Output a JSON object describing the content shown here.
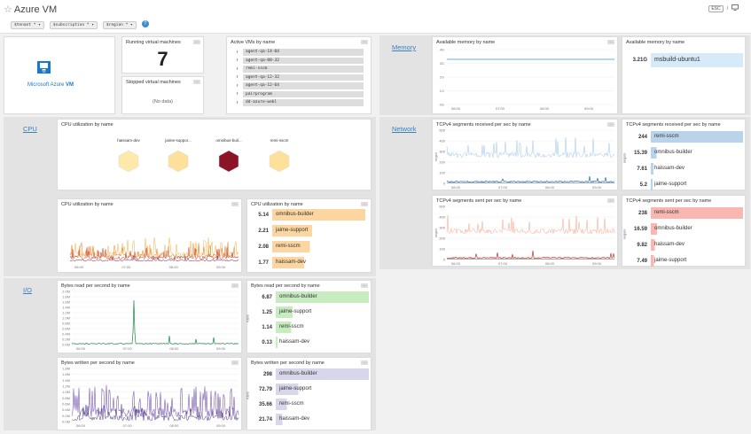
{
  "header": {
    "title": "Azure VM",
    "esc_label": "ESC",
    "slash_label": "/",
    "vars": [
      {
        "name": "$tenant",
        "value": "*"
      },
      {
        "name": "$subscription",
        "value": "*"
      },
      {
        "name": "$region",
        "value": "*"
      }
    ],
    "help": "?"
  },
  "logo": {
    "text1": "Microsoft Azure",
    "text2": "VM",
    "badge": "VM"
  },
  "running": {
    "title": "Running virtual machines",
    "value": "7"
  },
  "stopped": {
    "title": "Stopped virtual machines",
    "value": "(No data)"
  },
  "active_vms": {
    "title": "Active VMs by name",
    "items": [
      "agent-qa-14-04",
      "agent-qa-08-32",
      "remi-sscm",
      "agent-qa-12-32",
      "agent-qa-12-64",
      "pairprogram",
      "dd-azure-webl"
    ]
  },
  "groups": {
    "memory": "Memory",
    "cpu": "CPU",
    "network": "Network",
    "io": "I/O"
  },
  "memory_ts": {
    "title": "Available memory by name",
    "yticks": [
      "4G",
      "3G",
      "2G",
      "1G",
      "0G"
    ],
    "xticks": [
      "06:00",
      "07:00",
      "08:00",
      "09:00"
    ]
  },
  "memory_tl": {
    "title": "Available memory by name",
    "rows": [
      {
        "value": "3.21G",
        "name": "msbuild-ubuntu1"
      }
    ]
  },
  "cpu_hex": {
    "title": "CPU utilization by name",
    "items": [
      {
        "name": "haissam-dev",
        "color": "#fde9a9"
      },
      {
        "name": "jaime-suppor...",
        "color": "#fde09a"
      },
      {
        "name": "omnibus-buil...",
        "color": "#8c1426"
      },
      {
        "name": "remi-sscm",
        "color": "#fde19a"
      }
    ]
  },
  "cpu_ts": {
    "title": "CPU utilization by name",
    "xticks": [
      "06:00",
      "07:00",
      "08:00",
      "09:00"
    ]
  },
  "cpu_tl": {
    "title": "CPU utilization by name",
    "color": "#fcd6a0",
    "rows": [
      {
        "value": "5.14",
        "name": "omnibus-builder"
      },
      {
        "value": "2.21",
        "name": "jaime-support"
      },
      {
        "value": "2.08",
        "name": "remi-sscm"
      },
      {
        "value": "1.77",
        "name": "haissam-dev"
      }
    ]
  },
  "net_recv_ts": {
    "title": "TCPv4 segments received per sec by name",
    "yticks": [
      "500",
      "400",
      "300",
      "200",
      "100",
      "0"
    ],
    "ylabel": "segs/s",
    "xticks": [
      "06:00",
      "07:00",
      "08:00",
      "09:00"
    ]
  },
  "net_recv_tl": {
    "title": "TCPv4 segments received per sec by name",
    "ylabel": "segs/s",
    "rows": [
      {
        "value": "244",
        "name": "remi-sscm"
      },
      {
        "value": "15.39",
        "name": "omnibus-builder"
      },
      {
        "value": "7.61",
        "name": "haissam-dev"
      },
      {
        "value": "5.2",
        "name": "jaime-support"
      }
    ]
  },
  "net_sent_ts": {
    "title": "TCPv4 segments sent per sec by name",
    "yticks": [
      "500",
      "400",
      "300",
      "200",
      "100",
      "0"
    ],
    "ylabel": "segs/s",
    "xticks": [
      "06:00",
      "07:00",
      "08:00",
      "09:00"
    ]
  },
  "net_sent_tl": {
    "title": "TCPv4 segments sent per sec by name",
    "ylabel": "segs/s",
    "rows": [
      {
        "value": "238",
        "name": "remi-sscm"
      },
      {
        "value": "16.59",
        "name": "omnibus-builder"
      },
      {
        "value": "9.82",
        "name": "haissam-dev"
      },
      {
        "value": "7.49",
        "name": "jaime-support"
      }
    ]
  },
  "io_read_ts": {
    "title": "Bytes read per second by name",
    "yticks": [
      "2.0M",
      "1.8M",
      "1.6M",
      "1.4M",
      "1.2M",
      "1.0M",
      "0.8M",
      "0.6M",
      "0.4M",
      "0.2M",
      "0.0M"
    ],
    "xticks": [
      "06:00",
      "07:00",
      "08:00",
      "09:00"
    ]
  },
  "io_read_tl": {
    "title": "Bytes read per second by name",
    "ylabel": "KB/s",
    "rows": [
      {
        "value": "6.87",
        "name": "omnibus-builder"
      },
      {
        "value": "1.25",
        "name": "jaime-support"
      },
      {
        "value": "1.14",
        "name": "remi-sscm"
      },
      {
        "value": "0.13",
        "name": "haissam-dev"
      }
    ]
  },
  "io_write_ts": {
    "title": "Bytes written per second by name",
    "yticks": [
      "1.8M",
      "1.6M",
      "1.4M",
      "1.2M",
      "1.0M",
      "0.8M",
      "0.6M",
      "0.4M",
      "0.2M",
      "0.0M"
    ],
    "xticks": [
      "06:00",
      "07:00",
      "08:00",
      "09:00"
    ]
  },
  "io_write_tl": {
    "title": "Bytes written per second by name",
    "ylabel": "KB/s",
    "rows": [
      {
        "value": "298",
        "name": "omnibus-builder"
      },
      {
        "value": "72.79",
        "name": "jaime-support"
      },
      {
        "value": "35.66",
        "name": "remi-sscm"
      },
      {
        "value": "21.74",
        "name": "haissam-dev"
      }
    ]
  },
  "colors": {
    "memory": "#d6eaf8",
    "cpu": "#fcd6a0",
    "net_recv": "#b9d3ea",
    "net_sent": "#f8b7b0",
    "io_read": "#c7ecc0",
    "io_write": "#d8d6ea"
  }
}
